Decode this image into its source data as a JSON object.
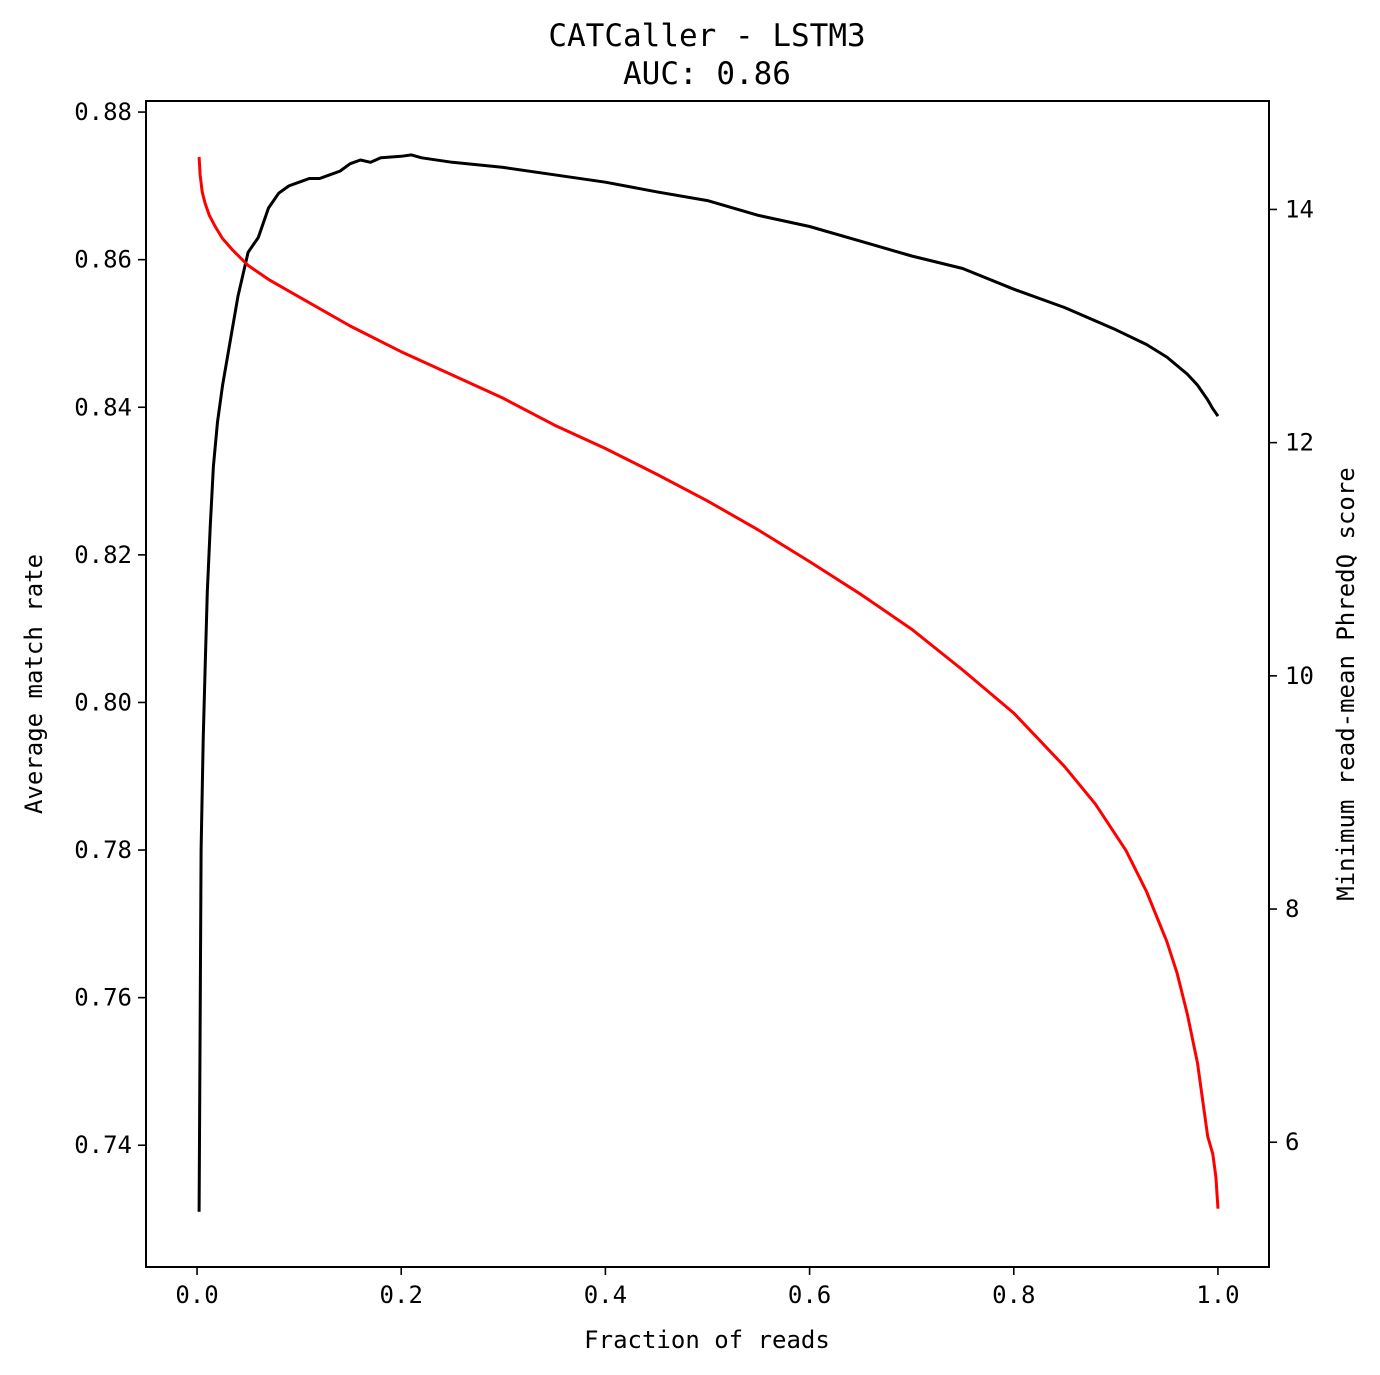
{
  "chart_data": {
    "type": "line",
    "title": "CATCaller - LSTM3",
    "subtitle": "AUC: 0.86",
    "xlabel": "Fraction of reads",
    "ylabel": "Average match rate",
    "y2label": "Minimum read-mean PhredQ score",
    "xlim": [
      -0.05,
      1.05
    ],
    "ylim": [
      0.7235,
      0.8815
    ],
    "y2lim": [
      4.93,
      14.93
    ],
    "xticks": [
      "0.0",
      "0.2",
      "0.4",
      "0.6",
      "0.8",
      "1.0"
    ],
    "yticks": [
      "0.74",
      "0.76",
      "0.78",
      "0.80",
      "0.82",
      "0.84",
      "0.86",
      "0.88"
    ],
    "y2ticks": [
      "6",
      "8",
      "10",
      "12",
      "14"
    ],
    "grid": false,
    "series": [
      {
        "axis": "left",
        "color": "#000000",
        "x": [
          0.002,
          0.004,
          0.006,
          0.008,
          0.01,
          0.013,
          0.016,
          0.02,
          0.025,
          0.03,
          0.035,
          0.04,
          0.045,
          0.05,
          0.055,
          0.06,
          0.065,
          0.07,
          0.075,
          0.08,
          0.09,
          0.1,
          0.11,
          0.12,
          0.13,
          0.14,
          0.15,
          0.16,
          0.17,
          0.18,
          0.2,
          0.21,
          0.22,
          0.25,
          0.3,
          0.35,
          0.4,
          0.45,
          0.5,
          0.55,
          0.6,
          0.65,
          0.7,
          0.75,
          0.8,
          0.85,
          0.9,
          0.93,
          0.95,
          0.97,
          0.98,
          0.99,
          0.995,
          1.0
        ],
        "y": [
          0.731,
          0.78,
          0.795,
          0.805,
          0.815,
          0.824,
          0.832,
          0.838,
          0.843,
          0.847,
          0.851,
          0.855,
          0.858,
          0.861,
          0.862,
          0.863,
          0.865,
          0.867,
          0.868,
          0.869,
          0.87,
          0.8705,
          0.871,
          0.871,
          0.8715,
          0.872,
          0.873,
          0.8735,
          0.8732,
          0.8738,
          0.874,
          0.8742,
          0.8738,
          0.8732,
          0.8725,
          0.8715,
          0.8705,
          0.8692,
          0.868,
          0.866,
          0.8645,
          0.8625,
          0.8605,
          0.8588,
          0.856,
          0.8535,
          0.8505,
          0.8485,
          0.8468,
          0.8445,
          0.843,
          0.841,
          0.8398,
          0.8388
        ]
      },
      {
        "axis": "right",
        "color": "#ff0000",
        "x": [
          0.002,
          0.003,
          0.005,
          0.008,
          0.012,
          0.018,
          0.025,
          0.035,
          0.05,
          0.07,
          0.1,
          0.15,
          0.2,
          0.25,
          0.3,
          0.35,
          0.4,
          0.45,
          0.5,
          0.55,
          0.6,
          0.65,
          0.7,
          0.75,
          0.8,
          0.85,
          0.88,
          0.91,
          0.93,
          0.95,
          0.96,
          0.97,
          0.98,
          0.99,
          0.995,
          0.998,
          1.0
        ],
        "y": [
          14.45,
          14.3,
          14.15,
          14.05,
          13.95,
          13.85,
          13.75,
          13.65,
          13.52,
          13.4,
          13.25,
          13.0,
          12.78,
          12.58,
          12.38,
          12.15,
          11.95,
          11.73,
          11.5,
          11.25,
          10.98,
          10.7,
          10.4,
          10.05,
          9.68,
          9.22,
          8.9,
          8.5,
          8.15,
          7.72,
          7.45,
          7.1,
          6.68,
          6.05,
          5.9,
          5.7,
          5.43
        ]
      }
    ]
  }
}
